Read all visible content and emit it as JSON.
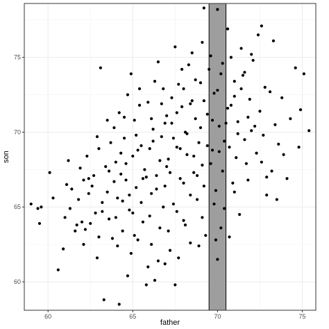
{
  "chart_data": {
    "type": "scatter",
    "title": "",
    "xlabel": "father",
    "ylabel": "son",
    "xlim": [
      58.6,
      75.8
    ],
    "ylim": [
      58.1,
      78.6
    ],
    "x_ticks": [
      60,
      65,
      70,
      75
    ],
    "y_ticks": [
      60,
      65,
      70,
      75
    ],
    "x_tick_labels": [
      "60",
      "65",
      "70",
      "75"
    ],
    "y_tick_labels": [
      "60",
      "65",
      "70",
      "75"
    ],
    "grid": true,
    "legend": "none",
    "highlight_band": {
      "x_range": [
        69.5,
        70.5
      ],
      "fill": "#9e9e9e"
    },
    "point_color": "#000000",
    "points": [
      [
        59.0,
        65.2
      ],
      [
        59.4,
        64.9
      ],
      [
        59.5,
        63.9
      ],
      [
        59.6,
        65.0
      ],
      [
        60.1,
        67.3
      ],
      [
        60.3,
        65.6
      ],
      [
        60.6,
        60.8
      ],
      [
        60.9,
        62.2
      ],
      [
        61.0,
        64.3
      ],
      [
        61.1,
        66.5
      ],
      [
        61.2,
        68.1
      ],
      [
        61.3,
        64.9
      ],
      [
        61.4,
        66.2
      ],
      [
        61.6,
        63.4
      ],
      [
        61.8,
        65.5
      ],
      [
        61.9,
        67.6
      ],
      [
        62.0,
        64.0
      ],
      [
        62.1,
        66.8
      ],
      [
        62.2,
        63.5
      ],
      [
        62.3,
        68.4
      ],
      [
        62.4,
        65.9
      ],
      [
        62.5,
        63.9
      ],
      [
        62.6,
        66.4
      ],
      [
        62.7,
        67.1
      ],
      [
        62.8,
        64.6
      ],
      [
        62.9,
        61.6
      ],
      [
        63.0,
        68.9
      ],
      [
        63.1,
        74.3
      ],
      [
        63.2,
        65.3
      ],
      [
        63.3,
        58.8
      ],
      [
        63.4,
        67.7
      ],
      [
        63.5,
        66.0
      ],
      [
        63.6,
        64.2
      ],
      [
        63.7,
        69.3
      ],
      [
        63.8,
        62.9
      ],
      [
        63.9,
        70.3
      ],
      [
        64.0,
        68.0
      ],
      [
        64.1,
        65.6
      ],
      [
        64.2,
        71.3
      ],
      [
        64.2,
        58.5
      ],
      [
        64.3,
        67.2
      ],
      [
        64.4,
        63.4
      ],
      [
        64.5,
        69.6
      ],
      [
        64.6,
        66.8
      ],
      [
        64.7,
        72.5
      ],
      [
        64.8,
        64.8
      ],
      [
        64.9,
        73.9
      ],
      [
        64.9,
        61.9
      ],
      [
        65.0,
        68.4
      ],
      [
        65.1,
        70.8
      ],
      [
        65.2,
        66.3
      ],
      [
        65.3,
        62.8
      ],
      [
        65.4,
        71.8
      ],
      [
        65.5,
        69.1
      ],
      [
        65.6,
        64.0
      ],
      [
        65.7,
        67.5
      ],
      [
        65.8,
        59.8
      ],
      [
        65.9,
        72.0
      ],
      [
        66.0,
        68.9
      ],
      [
        66.1,
        65.9
      ],
      [
        66.2,
        70.2
      ],
      [
        66.3,
        60.1
      ],
      [
        66.4,
        67.1
      ],
      [
        66.5,
        74.7
      ],
      [
        66.6,
        63.6
      ],
      [
        66.7,
        69.7
      ],
      [
        66.8,
        72.9
      ],
      [
        66.9,
        66.4
      ],
      [
        67.0,
        71.1
      ],
      [
        67.1,
        68.2
      ],
      [
        67.2,
        62.1
      ],
      [
        67.3,
        70.6
      ],
      [
        67.4,
        65.2
      ],
      [
        67.5,
        75.7
      ],
      [
        67.5,
        59.8
      ],
      [
        67.6,
        69.0
      ],
      [
        67.7,
        73.2
      ],
      [
        67.8,
        66.9
      ],
      [
        67.9,
        71.7
      ],
      [
        68.0,
        64.1
      ],
      [
        68.1,
        70.0
      ],
      [
        68.2,
        68.5
      ],
      [
        68.3,
        74.5
      ],
      [
        68.4,
        62.6
      ],
      [
        68.5,
        72.1
      ],
      [
        68.6,
        67.3
      ],
      [
        68.7,
        70.9
      ],
      [
        68.8,
        65.5
      ],
      [
        68.9,
        69.3
      ],
      [
        69.0,
        73.3
      ],
      [
        69.1,
        67.8
      ],
      [
        69.2,
        78.3
      ],
      [
        69.3,
        63.1
      ],
      [
        69.4,
        71.2
      ],
      [
        69.6,
        75.1
      ],
      [
        69.7,
        68.8
      ],
      [
        69.8,
        72.6
      ],
      [
        69.9,
        66.1
      ],
      [
        70.0,
        78.2
      ],
      [
        70.0,
        61.5
      ],
      [
        70.1,
        70.4
      ],
      [
        70.2,
        73.9
      ],
      [
        70.3,
        67.4
      ],
      [
        70.4,
        64.9
      ],
      [
        70.6,
        71.6
      ],
      [
        70.7,
        69.0
      ],
      [
        70.8,
        75.0
      ],
      [
        70.9,
        66.6
      ],
      [
        71.0,
        72.4
      ],
      [
        71.1,
        68.3
      ],
      [
        71.2,
        70.7
      ],
      [
        71.3,
        64.5
      ],
      [
        71.5,
        73.8
      ],
      [
        71.6,
        69.5
      ],
      [
        71.7,
        67.9
      ],
      [
        71.9,
        72.2
      ],
      [
        72.0,
        70.1
      ],
      [
        72.1,
        74.8
      ],
      [
        72.3,
        68.6
      ],
      [
        72.4,
        76.5
      ],
      [
        72.5,
        71.4
      ],
      [
        72.6,
        77.1
      ],
      [
        72.7,
        69.8
      ],
      [
        72.8,
        73.0
      ],
      [
        72.9,
        67.0
      ],
      [
        73.1,
        72.7
      ],
      [
        73.3,
        76.1
      ],
      [
        73.4,
        70.5
      ],
      [
        73.6,
        69.2
      ],
      [
        73.8,
        72.3
      ],
      [
        74.3,
        70.9
      ],
      [
        74.6,
        74.3
      ],
      [
        74.8,
        69.0
      ],
      [
        74.9,
        71.5
      ],
      [
        75.1,
        73.9
      ],
      [
        75.4,
        70.1
      ],
      [
        63.9,
        66.7
      ],
      [
        64.6,
        67.9
      ],
      [
        65.3,
        68.8
      ],
      [
        65.8,
        67.0
      ],
      [
        66.2,
        69.4
      ],
      [
        66.6,
        68.1
      ],
      [
        67.0,
        67.7
      ],
      [
        67.4,
        69.6
      ],
      [
        67.8,
        68.9
      ],
      [
        68.2,
        69.9
      ],
      [
        68.6,
        68.4
      ],
      [
        69.0,
        70.3
      ],
      [
        69.4,
        69.1
      ],
      [
        69.7,
        70.8
      ],
      [
        70.1,
        68.7
      ],
      [
        70.5,
        70.6
      ],
      [
        64.8,
        65.8
      ],
      [
        65.6,
        66.9
      ],
      [
        66.4,
        66.2
      ],
      [
        67.2,
        67.3
      ],
      [
        68.0,
        66.6
      ],
      [
        68.8,
        67.1
      ],
      [
        69.6,
        67.9
      ],
      [
        70.4,
        69.4
      ],
      [
        71.2,
        69.9
      ],
      [
        71.8,
        71.0
      ],
      [
        72.2,
        70.4
      ],
      [
        66.9,
        70.6
      ],
      [
        67.6,
        71.3
      ],
      [
        68.4,
        71.9
      ],
      [
        69.2,
        72.1
      ],
      [
        70.0,
        72.8
      ],
      [
        70.8,
        71.8
      ],
      [
        71.4,
        72.9
      ],
      [
        63.2,
        64.7
      ],
      [
        64.0,
        64.3
      ],
      [
        64.4,
        65.4
      ],
      [
        65.0,
        64.6
      ],
      [
        65.5,
        65.3
      ],
      [
        66.0,
        64.4
      ],
      [
        66.8,
        65.0
      ],
      [
        67.6,
        64.7
      ],
      [
        68.4,
        65.8
      ],
      [
        69.2,
        66.4
      ],
      [
        69.8,
        65.2
      ],
      [
        62.4,
        66.9
      ],
      [
        63.6,
        67.4
      ],
      [
        64.3,
        68.6
      ],
      [
        65.2,
        69.8
      ],
      [
        66.1,
        70.9
      ],
      [
        66.7,
        71.9
      ],
      [
        67.3,
        72.3
      ],
      [
        68.0,
        72.9
      ],
      [
        68.7,
        73.5
      ],
      [
        69.5,
        74.2
      ],
      [
        70.3,
        74.6
      ],
      [
        71.0,
        73.4
      ],
      [
        71.6,
        74.0
      ],
      [
        72.0,
        75.2
      ],
      [
        64.1,
        62.4
      ],
      [
        65.1,
        63.1
      ],
      [
        66.1,
        62.5
      ],
      [
        67.1,
        63.4
      ],
      [
        68.1,
        63.8
      ],
      [
        69.1,
        64.3
      ],
      [
        70.2,
        63.6
      ],
      [
        71.0,
        66.0
      ],
      [
        71.8,
        66.8
      ],
      [
        72.6,
        68.0
      ],
      [
        73.2,
        67.4
      ],
      [
        73.9,
        68.5
      ],
      [
        63.0,
        63.0
      ],
      [
        62.1,
        62.5
      ],
      [
        61.7,
        63.8
      ],
      [
        62.9,
        69.7
      ],
      [
        63.5,
        70.8
      ],
      [
        64.5,
        71.0
      ],
      [
        65.4,
        72.9
      ],
      [
        66.3,
        73.4
      ],
      [
        67.9,
        74.2
      ],
      [
        68.5,
        75.3
      ],
      [
        69.1,
        76.0
      ],
      [
        70.6,
        76.9
      ],
      [
        71.4,
        75.6
      ],
      [
        66.5,
        61.4
      ],
      [
        67.7,
        61.6
      ],
      [
        68.9,
        62.4
      ],
      [
        69.9,
        62.8
      ],
      [
        70.7,
        63.0
      ],
      [
        72.9,
        65.8
      ],
      [
        73.5,
        65.5
      ],
      [
        74.1,
        66.9
      ],
      [
        64.7,
        60.4
      ],
      [
        65.9,
        61.0
      ],
      [
        66.9,
        61.2
      ]
    ]
  }
}
